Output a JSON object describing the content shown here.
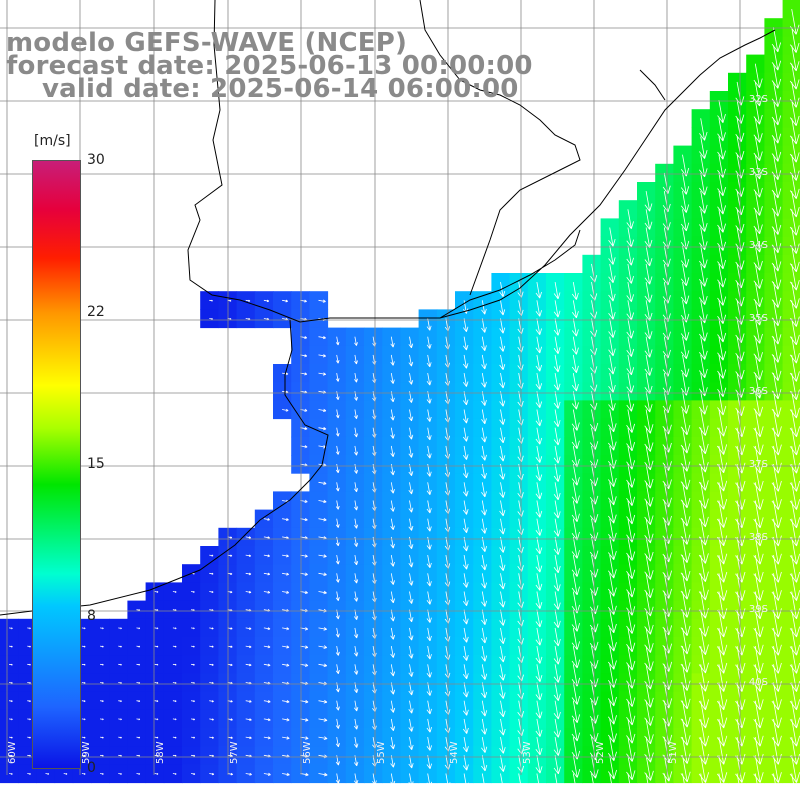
{
  "title": {
    "line1": "modelo GEFS-WAVE (NCEP)",
    "line2": "forecast date: 2025-06-13 00:00:00",
    "line3": "valid date: 2025-06-14 06:00:00"
  },
  "colorbar": {
    "unit": "[m/s]",
    "ticks": [
      "30",
      "22",
      "15",
      "8",
      "0"
    ],
    "colors": [
      "#0a14e6",
      "#1e64ff",
      "#00c8ff",
      "#00ffd0",
      "#00e600",
      "#aaff00",
      "#ffff00",
      "#ff9600",
      "#ff1e00",
      "#e6003c",
      "#c81e78"
    ]
  },
  "latitude_labels": [
    "32S",
    "33S",
    "34S",
    "35S",
    "36S",
    "37S",
    "38S",
    "39S",
    "40S"
  ],
  "longitude_labels": [
    "60W",
    "59W",
    "58W",
    "57W",
    "56W",
    "55W",
    "54W",
    "53W",
    "52W",
    "51W"
  ],
  "field": {
    "variable": "wind speed",
    "min": 0,
    "max": 30,
    "land_color": "#ffffff",
    "grid_color": "#888888"
  }
}
